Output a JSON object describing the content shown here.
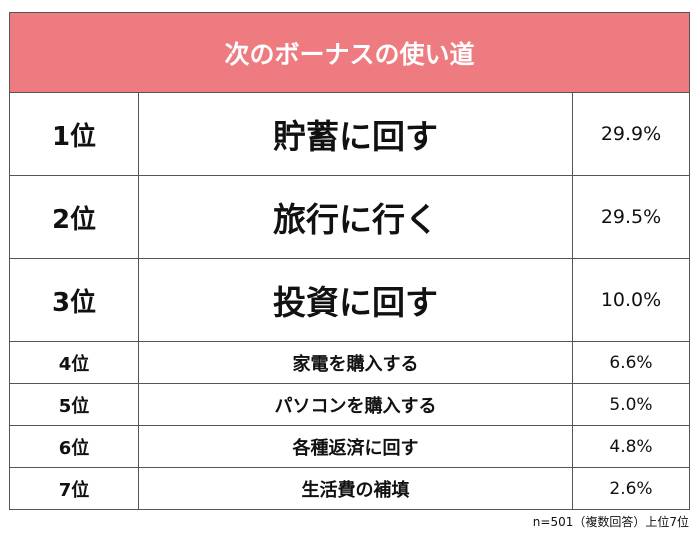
{
  "title": "次のボーナスの使い道",
  "rows": [
    {
      "rank": "1位",
      "item": "貯蓄に回す",
      "pct": "29.9%"
    },
    {
      "rank": "2位",
      "item": "旅行に行く",
      "pct": "29.5%"
    },
    {
      "rank": "3位",
      "item": "投資に回す",
      "pct": "10.0%"
    },
    {
      "rank": "4位",
      "item": "家電を購入する",
      "pct": "6.6%"
    },
    {
      "rank": "5位",
      "item": "パソコンを購入する",
      "pct": "5.0%"
    },
    {
      "rank": "6位",
      "item": "各種返済に回す",
      "pct": "4.8%"
    },
    {
      "rank": "7位",
      "item": "生活費の補填",
      "pct": "2.6%"
    }
  ],
  "note": "n=501（複数回答）上位7位"
}
